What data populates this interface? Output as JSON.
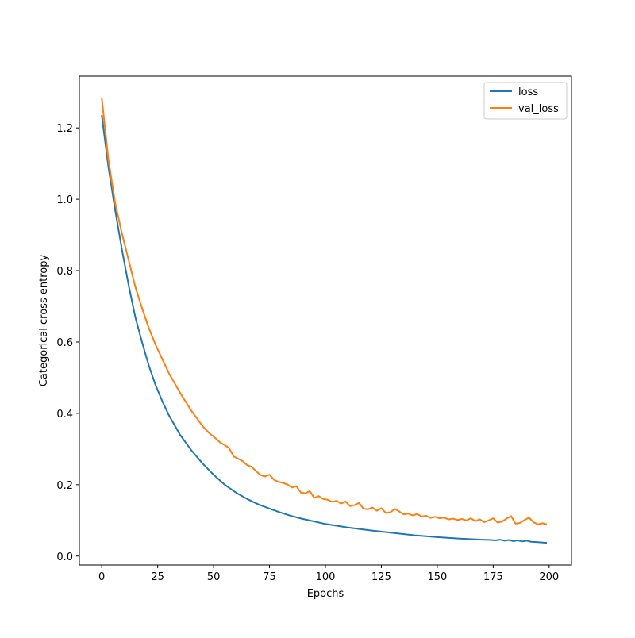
{
  "chart_data": {
    "type": "line",
    "title": "",
    "xlabel": "Epochs",
    "ylabel": "Categorical cross entropy",
    "xlim": [
      -10,
      210
    ],
    "ylim": [
      -0.025,
      1.345
    ],
    "xticks": [
      0,
      25,
      50,
      75,
      100,
      125,
      150,
      175,
      200
    ],
    "xtick_labels": [
      "0",
      "25",
      "50",
      "75",
      "100",
      "125",
      "150",
      "175",
      "200"
    ],
    "yticks": [
      0.0,
      0.2,
      0.4,
      0.6,
      0.8,
      1.0,
      1.2
    ],
    "ytick_labels": [
      "0.0",
      "0.2",
      "0.4",
      "0.6",
      "0.8",
      "1.0",
      "1.2"
    ],
    "grid": false,
    "legend_position": "top-right",
    "series": [
      {
        "name": "loss",
        "color": "#1f77b4",
        "x": [
          0,
          3,
          6,
          9,
          12,
          15,
          18,
          21,
          24,
          27,
          30,
          35,
          40,
          45,
          50,
          55,
          60,
          65,
          70,
          75,
          80,
          85,
          90,
          95,
          100,
          110,
          120,
          130,
          140,
          150,
          160,
          170,
          174,
          176,
          178,
          180,
          182,
          184,
          186,
          188,
          190,
          192,
          195,
          199
        ],
        "y": [
          1.236,
          1.09,
          0.97,
          0.86,
          0.76,
          0.67,
          0.6,
          0.535,
          0.48,
          0.435,
          0.395,
          0.34,
          0.297,
          0.26,
          0.228,
          0.2,
          0.178,
          0.16,
          0.145,
          0.133,
          0.122,
          0.112,
          0.104,
          0.097,
          0.09,
          0.08,
          0.072,
          0.065,
          0.058,
          0.053,
          0.049,
          0.046,
          0.045,
          0.044,
          0.046,
          0.043,
          0.045,
          0.042,
          0.044,
          0.041,
          0.043,
          0.04,
          0.039,
          0.037
        ]
      },
      {
        "name": "val_loss",
        "color": "#ff7f0e",
        "x": [
          0,
          3,
          6,
          9,
          12,
          15,
          18,
          21,
          24,
          27,
          30,
          35,
          40,
          45,
          48,
          50,
          53,
          55,
          57,
          59,
          61,
          63,
          65,
          67,
          69,
          71,
          73,
          75,
          77,
          79,
          81,
          83,
          85,
          87,
          89,
          91,
          93,
          95,
          97,
          99,
          101,
          103,
          105,
          107,
          109,
          111,
          113,
          115,
          117,
          119,
          121,
          123,
          125,
          127,
          129,
          131,
          133,
          135,
          137,
          139,
          141,
          143,
          145,
          147,
          149,
          151,
          153,
          155,
          157,
          159,
          161,
          163,
          165,
          167,
          169,
          171,
          173,
          175,
          177,
          179,
          181,
          183,
          185,
          187,
          189,
          191,
          193,
          195,
          197,
          199
        ],
        "y": [
          1.285,
          1.11,
          0.99,
          0.905,
          0.83,
          0.755,
          0.695,
          0.64,
          0.593,
          0.553,
          0.513,
          0.458,
          0.408,
          0.365,
          0.345,
          0.335,
          0.318,
          0.311,
          0.302,
          0.279,
          0.273,
          0.266,
          0.255,
          0.25,
          0.238,
          0.227,
          0.223,
          0.228,
          0.214,
          0.208,
          0.205,
          0.201,
          0.192,
          0.196,
          0.178,
          0.176,
          0.182,
          0.163,
          0.168,
          0.16,
          0.158,
          0.152,
          0.155,
          0.147,
          0.153,
          0.14,
          0.143,
          0.149,
          0.133,
          0.131,
          0.136,
          0.127,
          0.134,
          0.121,
          0.123,
          0.132,
          0.125,
          0.117,
          0.119,
          0.114,
          0.118,
          0.111,
          0.113,
          0.107,
          0.11,
          0.106,
          0.108,
          0.103,
          0.105,
          0.101,
          0.104,
          0.1,
          0.106,
          0.098,
          0.103,
          0.095,
          0.1,
          0.106,
          0.094,
          0.097,
          0.105,
          0.112,
          0.091,
          0.093,
          0.101,
          0.108,
          0.095,
          0.089,
          0.092,
          0.089
        ]
      }
    ]
  }
}
